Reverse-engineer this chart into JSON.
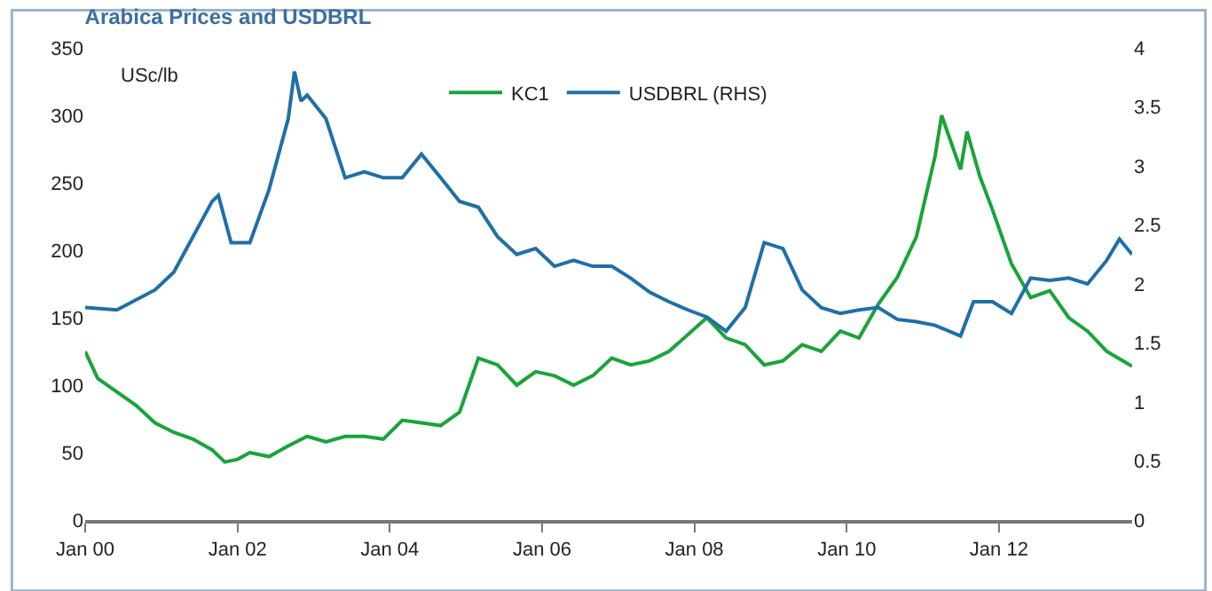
{
  "chart_data": {
    "type": "line",
    "title": "Arabica Prices and USDBRL",
    "annotations": [
      "USc/lb"
    ],
    "xlim": [
      "2000-01",
      "2013-10"
    ],
    "xticks": [
      {
        "value": "2000-01",
        "label": "Jan 00"
      },
      {
        "value": "2002-01",
        "label": "Jan 02"
      },
      {
        "value": "2004-01",
        "label": "Jan 04"
      },
      {
        "value": "2006-01",
        "label": "Jan 06"
      },
      {
        "value": "2008-01",
        "label": "Jan 08"
      },
      {
        "value": "2010-01",
        "label": "Jan 10"
      },
      {
        "value": "2012-01",
        "label": "Jan 12"
      }
    ],
    "ylim": [
      0,
      350
    ],
    "yticks": [
      0,
      50,
      100,
      150,
      200,
      250,
      300,
      350
    ],
    "y2lim": [
      0,
      4
    ],
    "y2ticks": [
      0,
      0.5,
      1,
      1.5,
      2,
      2.5,
      3,
      3.5,
      4
    ],
    "grid": false,
    "legend": "top",
    "marker": "none",
    "line_style": "solid",
    "series": [
      {
        "name": "KC1",
        "color": "#1aa33a",
        "x": [
          "2000-01",
          "2000-03",
          "2000-06",
          "2000-09",
          "2000-12",
          "2001-03",
          "2001-06",
          "2001-09",
          "2001-11",
          "2002-01",
          "2002-03",
          "2002-06",
          "2002-09",
          "2002-12",
          "2003-03",
          "2003-06",
          "2003-09",
          "2003-12",
          "2004-03",
          "2004-06",
          "2004-09",
          "2004-12",
          "2005-03",
          "2005-06",
          "2005-09",
          "2005-12",
          "2006-03",
          "2006-06",
          "2006-09",
          "2006-12",
          "2007-03",
          "2007-06",
          "2007-09",
          "2008-03",
          "2008-06",
          "2008-09",
          "2008-12",
          "2009-03",
          "2009-06",
          "2009-09",
          "2009-12",
          "2010-03",
          "2010-06",
          "2010-09",
          "2010-12",
          "2011-03",
          "2011-04",
          "2011-07",
          "2011-08",
          "2011-10",
          "2011-12",
          "2012-03",
          "2012-06",
          "2012-09",
          "2012-12",
          "2013-03",
          "2013-06",
          "2013-10"
        ],
        "values": [
          125,
          105,
          95,
          85,
          72,
          65,
          60,
          52,
          43,
          45,
          50,
          47,
          55,
          62,
          58,
          62,
          62,
          60,
          74,
          72,
          70,
          80,
          120,
          115,
          100,
          110,
          107,
          100,
          107,
          120,
          115,
          118,
          125,
          150,
          135,
          130,
          115,
          118,
          130,
          125,
          140,
          135,
          160,
          180,
          210,
          270,
          300,
          260,
          288,
          255,
          230,
          190,
          165,
          170,
          150,
          140,
          125,
          114
        ]
      },
      {
        "name": "USDBRL (RHS)",
        "color": "#1f6fa8",
        "axis": "y2",
        "x": [
          "2000-01",
          "2000-06",
          "2000-12",
          "2001-03",
          "2001-06",
          "2001-09",
          "2001-10",
          "2001-12",
          "2002-03",
          "2002-06",
          "2002-09",
          "2002-10",
          "2002-11",
          "2002-12",
          "2003-03",
          "2003-06",
          "2003-09",
          "2003-12",
          "2004-03",
          "2004-06",
          "2004-09",
          "2004-12",
          "2005-03",
          "2005-06",
          "2005-09",
          "2005-12",
          "2006-03",
          "2006-06",
          "2006-09",
          "2006-12",
          "2007-03",
          "2007-06",
          "2007-09",
          "2007-12",
          "2008-03",
          "2008-06",
          "2008-09",
          "2008-12",
          "2009-03",
          "2009-06",
          "2009-09",
          "2009-12",
          "2010-03",
          "2010-06",
          "2010-09",
          "2010-12",
          "2011-03",
          "2011-07",
          "2011-09",
          "2011-12",
          "2012-03",
          "2012-06",
          "2012-09",
          "2012-12",
          "2013-03",
          "2013-06",
          "2013-08",
          "2013-10"
        ],
        "values": [
          1.8,
          1.78,
          1.95,
          2.1,
          2.4,
          2.7,
          2.75,
          2.35,
          2.35,
          2.8,
          3.4,
          3.8,
          3.55,
          3.6,
          3.4,
          2.9,
          2.95,
          2.9,
          2.9,
          3.1,
          2.9,
          2.7,
          2.65,
          2.4,
          2.25,
          2.3,
          2.15,
          2.2,
          2.15,
          2.15,
          2.05,
          1.93,
          1.85,
          1.78,
          1.72,
          1.6,
          1.8,
          2.35,
          2.3,
          1.95,
          1.8,
          1.75,
          1.78,
          1.8,
          1.7,
          1.68,
          1.65,
          1.56,
          1.85,
          1.85,
          1.75,
          2.05,
          2.03,
          2.05,
          2.0,
          2.2,
          2.38,
          2.25
        ]
      }
    ]
  }
}
